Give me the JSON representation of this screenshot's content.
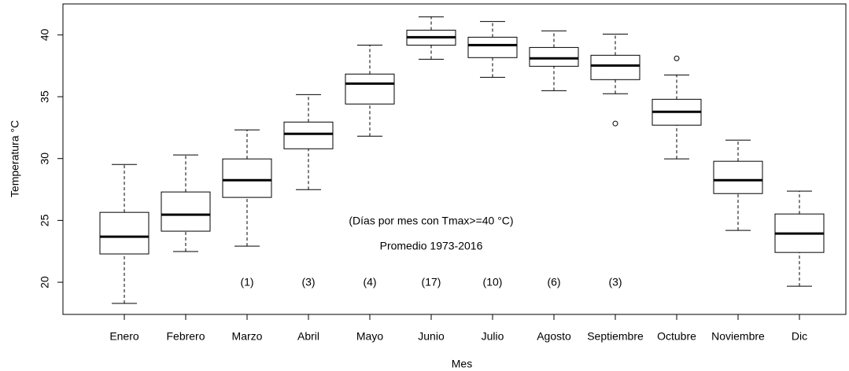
{
  "chart_data": {
    "type": "box",
    "x_label": "Mes",
    "y_label": "Temperatura °C",
    "annotations": [
      "(Días por mes con Tmax>=40  °C)",
      "Promedio 1973-2016"
    ],
    "categories": [
      "Enero",
      "Febrero",
      "Marzo",
      "Abril",
      "Mayo",
      "Junio",
      "Julio",
      "Agosto",
      "Septiembre",
      "Octubre",
      "Noviembre",
      "Dic"
    ],
    "boxes": [
      {
        "min": 18.29,
        "q1": 22.29,
        "median": 23.68,
        "q3": 25.65,
        "max": 29.52,
        "outliers": []
      },
      {
        "min": 22.48,
        "q1": 24.13,
        "median": 25.46,
        "q3": 27.3,
        "max": 30.29,
        "outliers": []
      },
      {
        "min": 22.92,
        "q1": 26.86,
        "median": 28.25,
        "q3": 29.97,
        "max": 32.32,
        "outliers": []
      },
      {
        "min": 27.49,
        "q1": 30.79,
        "median": 32.0,
        "q3": 32.95,
        "max": 35.17,
        "outliers": []
      },
      {
        "min": 31.81,
        "q1": 34.41,
        "median": 36.06,
        "q3": 36.83,
        "max": 39.17,
        "outliers": []
      },
      {
        "min": 38.03,
        "q1": 39.17,
        "median": 39.81,
        "q3": 40.38,
        "max": 41.46,
        "outliers": []
      },
      {
        "min": 36.57,
        "q1": 38.16,
        "median": 39.17,
        "q3": 39.81,
        "max": 41.08,
        "outliers": []
      },
      {
        "min": 35.49,
        "q1": 37.46,
        "median": 38.1,
        "q3": 38.98,
        "max": 40.32,
        "outliers": []
      },
      {
        "min": 35.24,
        "q1": 36.38,
        "median": 37.52,
        "q3": 38.35,
        "max": 40.06,
        "outliers": [
          32.83
        ]
      },
      {
        "min": 29.97,
        "q1": 32.7,
        "median": 33.78,
        "q3": 34.79,
        "max": 36.76,
        "outliers": [
          38.1
        ]
      },
      {
        "min": 24.19,
        "q1": 27.17,
        "median": 28.25,
        "q3": 29.78,
        "max": 31.49,
        "outliers": []
      },
      {
        "min": 19.68,
        "q1": 22.41,
        "median": 23.94,
        "q3": 25.52,
        "max": 27.37,
        "outliers": []
      }
    ],
    "day_counts": {
      "values": [
        null,
        null,
        1,
        3,
        4,
        17,
        10,
        6,
        3,
        null,
        null,
        null
      ],
      "value_labels": [
        null,
        null,
        "(1)",
        "(3)",
        "(4)",
        "(17)",
        "(10)",
        "(6)",
        "(3)",
        null,
        null,
        null
      ]
    },
    "ylim": [
      17.4,
      42.5
    ],
    "yticks": [
      20,
      25,
      30,
      35,
      40
    ],
    "color": "#000000"
  }
}
